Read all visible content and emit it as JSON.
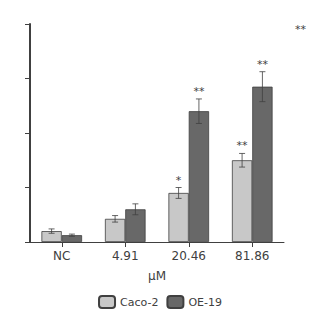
{
  "chart_data": {
    "type": "bar",
    "xlabel": "μM",
    "categories": [
      "NC",
      "4.91",
      "20.46",
      "81.86"
    ],
    "series": [
      {
        "name": "Caco-2",
        "color": "#c8c8c8",
        "values": [
          4.0,
          8.5,
          18.0,
          30.0
        ],
        "errors": [
          0.8,
          1.2,
          2.0,
          2.5
        ],
        "significance": [
          null,
          null,
          "*",
          "**"
        ]
      },
      {
        "name": "OE-19",
        "color": "#686868",
        "values": [
          2.5,
          12.0,
          48.0,
          57.0
        ],
        "errors": [
          0.4,
          2.0,
          4.5,
          5.5
        ],
        "significance": [
          null,
          null,
          "**",
          "**"
        ]
      }
    ],
    "annotation": "**",
    "ylim": [
      0,
      80
    ],
    "yticks": [
      0,
      20,
      40,
      60,
      80
    ],
    "tick_labels": "x",
    "grid": false,
    "legend": "bottom"
  }
}
